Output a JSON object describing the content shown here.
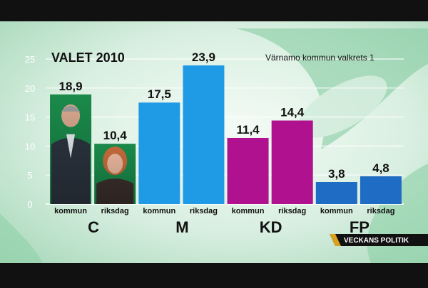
{
  "chart_data": {
    "type": "bar",
    "title": "VALET 2010",
    "subtitle": "Värnamo kommun valkrets 1",
    "ylim": [
      0,
      25
    ],
    "yticks": [
      0,
      5,
      10,
      15,
      20,
      25
    ],
    "grid": true,
    "bars": [
      {
        "party": "C",
        "label": "kommun",
        "value": 18.9,
        "value_label": "18,9",
        "color": "#1a8a4a"
      },
      {
        "party": "C",
        "label": "riksdag",
        "value": 10.4,
        "value_label": "10,4",
        "color": "#1a8a4a"
      },
      {
        "party": "M",
        "label": "kommun",
        "value": 17.5,
        "value_label": "17,5",
        "color": "#1f9be6"
      },
      {
        "party": "M",
        "label": "riksdag",
        "value": 23.9,
        "value_label": "23,9",
        "color": "#1f9be6"
      },
      {
        "party": "KD",
        "label": "kommun",
        "value": 11.4,
        "value_label": "11,4",
        "color": "#b0128f"
      },
      {
        "party": "KD",
        "label": "riksdag",
        "value": 14.4,
        "value_label": "14,4",
        "color": "#b0128f"
      },
      {
        "party": "FP",
        "label": "kommun",
        "value": 3.8,
        "value_label": "3,8",
        "color": "#1f6cc4"
      },
      {
        "party": "FP",
        "label": "riksdag",
        "value": 4.8,
        "value_label": "4,8",
        "color": "#1f6cc4"
      }
    ],
    "groups": [
      "C",
      "M",
      "KD",
      "FP"
    ]
  },
  "branding": {
    "program_label": "VECKANS POLITIK",
    "accent_color": "#d9a21e"
  }
}
